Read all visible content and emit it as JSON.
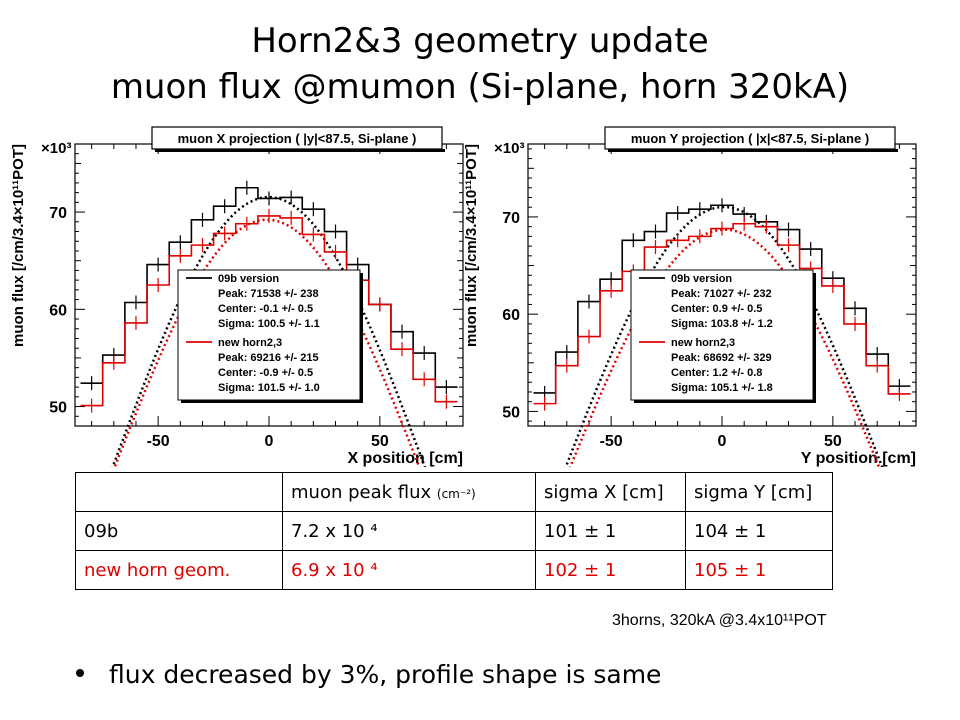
{
  "title": {
    "line1": "Horn2&3 geometry update",
    "line2": "muon flux @mumon (Si-plane, horn 320kA)"
  },
  "colors": {
    "series_09b": "#000000",
    "series_new": "#e00000"
  },
  "chart_data": [
    {
      "type": "line",
      "title": "muon X projection ( |y|<87.5, Si-plane )",
      "xlabel": "X position [cm]",
      "ylabel": "muon flux [/cm/3.4×10¹¹POT]",
      "y_multiplier": "×10³",
      "xlim": [
        -87.5,
        87.5
      ],
      "ylim": [
        48,
        77
      ],
      "xticks": [
        -50,
        0,
        50
      ],
      "yticks": [
        50,
        60,
        70
      ],
      "x": [
        -80,
        -70,
        -60,
        -50,
        -40,
        -30,
        -20,
        -10,
        0,
        10,
        20,
        30,
        40,
        50,
        60,
        70,
        80
      ],
      "series": [
        {
          "name": "09b version",
          "style": "histogram",
          "values": [
            52.4,
            55.3,
            60.7,
            64.6,
            66.9,
            69.2,
            70.6,
            72.5,
            71.4,
            71.5,
            70.3,
            68.0,
            64.6,
            60.5,
            57.7,
            55.5,
            52.0
          ]
        },
        {
          "name": "new horn2,3",
          "style": "histogram",
          "values": [
            50.1,
            54.5,
            58.6,
            62.5,
            65.5,
            66.6,
            67.8,
            68.8,
            69.6,
            69.4,
            67.7,
            65.9,
            63.0,
            60.5,
            55.9,
            52.8,
            50.5
          ]
        }
      ],
      "legend": {
        "position": "right",
        "entries": [
          {
            "label": "09b version",
            "peak": "Peak: 71538 +/- 238",
            "center": "Center: -0.1 +/- 0.5",
            "sigma": "Sigma: 100.5 +/- 1.1"
          },
          {
            "label": "new horn2,3",
            "peak": "Peak: 69216 +/- 215",
            "center": "Center: -0.9 +/- 0.5",
            "sigma": "Sigma: 101.5 +/- 1.0"
          }
        ]
      },
      "fits": [
        {
          "peak": 71.538,
          "center": -0.1,
          "sigma": 100.5
        },
        {
          "peak": 69.216,
          "center": -0.9,
          "sigma": 101.5
        }
      ]
    },
    {
      "type": "line",
      "title": "muon Y projection ( |x|<87.5, Si-plane )",
      "xlabel": "Y position [cm]",
      "ylabel": "muon flux [/cm/3.4×10¹¹POT]",
      "y_multiplier": "×10³",
      "xlim": [
        -87.5,
        87.5
      ],
      "ylim": [
        48.5,
        77.5
      ],
      "xticks": [
        -50,
        0,
        50
      ],
      "yticks": [
        50,
        60,
        70
      ],
      "x": [
        -80,
        -70,
        -60,
        -50,
        -40,
        -30,
        -20,
        -10,
        0,
        10,
        20,
        30,
        40,
        50,
        60,
        70,
        80
      ],
      "series": [
        {
          "name": "09b version",
          "style": "histogram",
          "values": [
            51.9,
            56.1,
            61.3,
            63.6,
            67.6,
            68.5,
            70.4,
            70.8,
            71.2,
            70.3,
            69.5,
            68.7,
            66.7,
            63.7,
            60.6,
            55.9,
            52.6
          ]
        },
        {
          "name": "new horn2,3",
          "style": "histogram",
          "values": [
            50.8,
            54.7,
            57.7,
            62.4,
            64.4,
            66.9,
            67.6,
            68.0,
            68.8,
            69.3,
            69.0,
            67.1,
            64.7,
            62.9,
            59.0,
            54.7,
            51.8
          ]
        }
      ],
      "legend": {
        "position": "right",
        "entries": [
          {
            "label": "09b version",
            "peak": "Peak: 71027 +/- 232",
            "center": "Center: 0.9 +/- 0.5",
            "sigma": "Sigma: 103.8 +/- 1.2"
          },
          {
            "label": "new horn2,3",
            "peak": "Peak: 68692 +/- 329",
            "center": "Center: 1.2 +/- 0.8",
            "sigma": "Sigma: 105.1 +/- 1.8"
          }
        ]
      },
      "fits": [
        {
          "peak": 71.027,
          "center": 0.9,
          "sigma": 103.8
        },
        {
          "peak": 68.692,
          "center": 1.2,
          "sigma": 105.1
        }
      ]
    }
  ],
  "table": {
    "header": {
      "blank": "",
      "peak_flux": "muon peak flux",
      "peak_unit": "(cm⁻²)",
      "sigma_x": "sigma X [cm]",
      "sigma_y": "sigma Y [cm]"
    },
    "rows": [
      {
        "label": "09b",
        "flux": "7.2 x 10 ⁴",
        "sigma_x": "101 ± 1",
        "sigma_y": "104 ± 1"
      },
      {
        "label": "new horn geom.",
        "flux": "6.9 x 10 ⁴",
        "sigma_x": "102 ± 1",
        "sigma_y": "105 ± 1"
      }
    ]
  },
  "footnote": "3horns, 320kA @3.4x10¹¹POT",
  "bullet": "flux decreased by 3%, profile shape is same"
}
